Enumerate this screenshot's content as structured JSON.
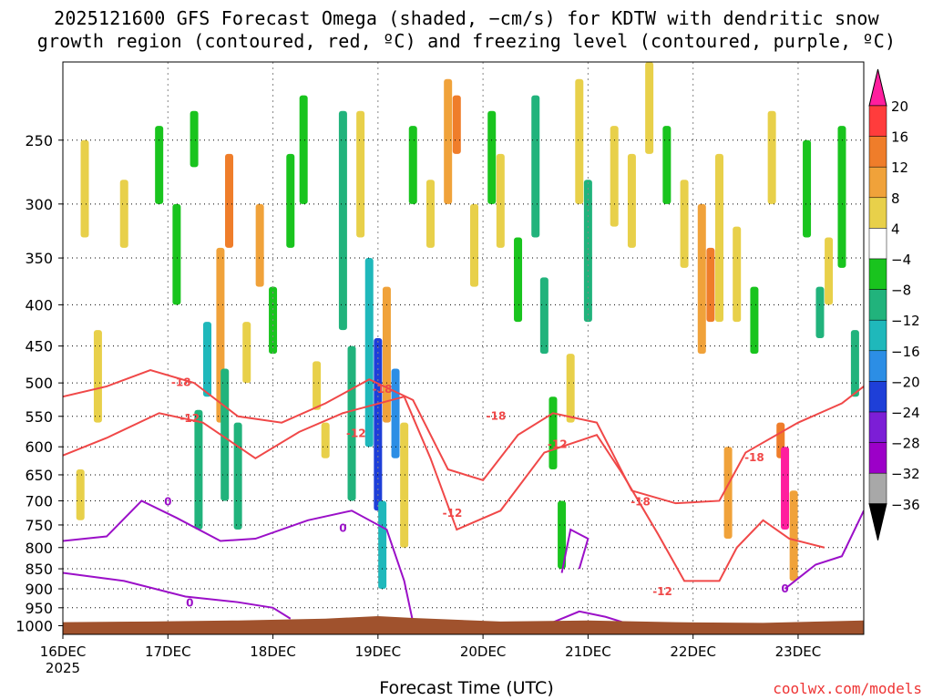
{
  "title_line1": "2025121600 GFS Forecast Omega (shaded, −cm/s) for KDTW with dendritic snow",
  "title_line2": "growth region (contoured, red, ºC) and freezing level (contoured, purple, ºC)",
  "xlabel": "Forecast Time (UTC)",
  "credit": "coolwx.com/models",
  "chart_data": {
    "type": "heatmap",
    "title": "2025121600 GFS Forecast Omega (shaded, −cm/s) for KDTW with dendritic snow growth region (contoured, red, ºC) and freezing level (contoured, purple, ºC)",
    "xlabel": "Forecast Time (UTC)",
    "ylabel": "",
    "y_scale": "log",
    "y_inverted": true,
    "y_ticks": [
      "250",
      "300",
      "350",
      "400",
      "450",
      "500",
      "550",
      "600",
      "650",
      "700",
      "750",
      "800",
      "850",
      "900",
      "950",
      "1000"
    ],
    "y_tick_values": [
      250,
      300,
      350,
      400,
      450,
      500,
      550,
      600,
      650,
      700,
      750,
      800,
      850,
      900,
      950,
      1000
    ],
    "ylim": [
      1025,
      200
    ],
    "x_ticks": [
      "16DEC",
      "17DEC",
      "18DEC",
      "19DEC",
      "20DEC",
      "21DEC",
      "22DEC",
      "23DEC"
    ],
    "x_tick_values": [
      0,
      24,
      48,
      72,
      96,
      120,
      144,
      168
    ],
    "x_year_label": "2025",
    "xlim": [
      0,
      183
    ],
    "grid": true,
    "colorbar": {
      "labels": [
        "20",
        "16",
        "12",
        "8",
        "4",
        "−4",
        "−8",
        "−12",
        "−16",
        "−20",
        "−24",
        "−28",
        "−32",
        "−36"
      ],
      "colors": [
        "#ff1e9e",
        "#ff3c3c",
        "#ef7d2a",
        "#f0a23a",
        "#e8d04a",
        "#ffffff",
        "#19c41e",
        "#21b37c",
        "#1fb8bb",
        "#2c8ee5",
        "#1e3fd8",
        "#7c1ed6",
        "#9c00c8",
        "#a8a8a8",
        "#000000"
      ]
    },
    "contour_labels": {
      "dendritic": [
        "-18",
        "-12",
        "-18",
        "-12",
        "-18",
        "-12",
        "-18",
        "-12",
        "-12",
        "-18",
        "-18",
        "-12"
      ],
      "freezing": [
        "0",
        "0",
        "0",
        "0",
        "0",
        "0",
        "0"
      ]
    },
    "omega_cells": [
      {
        "t": 5,
        "p1": 250,
        "p2": 330,
        "v": 6
      },
      {
        "t": 8,
        "p1": 430,
        "p2": 560,
        "v": 6
      },
      {
        "t": 4,
        "p1": 640,
        "p2": 740,
        "v": 5
      },
      {
        "t": 14,
        "p1": 280,
        "p2": 340,
        "v": 5
      },
      {
        "t": 22,
        "p1": 240,
        "p2": 300,
        "v": -6
      },
      {
        "t": 26,
        "p1": 300,
        "p2": 400,
        "v": -7
      },
      {
        "t": 30,
        "p1": 230,
        "p2": 270,
        "v": -6
      },
      {
        "t": 31,
        "p1": 540,
        "p2": 760,
        "v": -8
      },
      {
        "t": 33,
        "p1": 420,
        "p2": 520,
        "v": -12
      },
      {
        "t": 36,
        "p1": 340,
        "p2": 560,
        "v": 8
      },
      {
        "t": 37,
        "p1": 480,
        "p2": 700,
        "v": -8
      },
      {
        "t": 38,
        "p1": 260,
        "p2": 340,
        "v": 12
      },
      {
        "t": 40,
        "p1": 560,
        "p2": 760,
        "v": -9
      },
      {
        "t": 42,
        "p1": 420,
        "p2": 500,
        "v": 7
      },
      {
        "t": 45,
        "p1": 300,
        "p2": 380,
        "v": 8
      },
      {
        "t": 48,
        "p1": 380,
        "p2": 460,
        "v": -6
      },
      {
        "t": 52,
        "p1": 260,
        "p2": 340,
        "v": -7
      },
      {
        "t": 55,
        "p1": 220,
        "p2": 300,
        "v": -6
      },
      {
        "t": 58,
        "p1": 470,
        "p2": 540,
        "v": 5
      },
      {
        "t": 60,
        "p1": 560,
        "p2": 620,
        "v": 6
      },
      {
        "t": 64,
        "p1": 230,
        "p2": 430,
        "v": -8
      },
      {
        "t": 66,
        "p1": 450,
        "p2": 700,
        "v": -10
      },
      {
        "t": 68,
        "p1": 230,
        "p2": 330,
        "v": 6
      },
      {
        "t": 70,
        "p1": 350,
        "p2": 600,
        "v": -12
      },
      {
        "t": 72,
        "p1": 440,
        "p2": 720,
        "v": -20
      },
      {
        "t": 73,
        "p1": 700,
        "p2": 900,
        "v": -14
      },
      {
        "t": 74,
        "p1": 380,
        "p2": 560,
        "v": 8
      },
      {
        "t": 76,
        "p1": 480,
        "p2": 620,
        "v": -16
      },
      {
        "t": 78,
        "p1": 560,
        "p2": 800,
        "v": 6
      },
      {
        "t": 80,
        "p1": 240,
        "p2": 300,
        "v": -6
      },
      {
        "t": 84,
        "p1": 280,
        "p2": 340,
        "v": 7
      },
      {
        "t": 88,
        "p1": 210,
        "p2": 300,
        "v": 8
      },
      {
        "t": 90,
        "p1": 220,
        "p2": 260,
        "v": 12
      },
      {
        "t": 94,
        "p1": 300,
        "p2": 380,
        "v": 6
      },
      {
        "t": 98,
        "p1": 230,
        "p2": 300,
        "v": -7
      },
      {
        "t": 100,
        "p1": 260,
        "p2": 340,
        "v": 5
      },
      {
        "t": 104,
        "p1": 330,
        "p2": 420,
        "v": -6
      },
      {
        "t": 108,
        "p1": 220,
        "p2": 330,
        "v": -8
      },
      {
        "t": 110,
        "p1": 370,
        "p2": 460,
        "v": -9
      },
      {
        "t": 112,
        "p1": 520,
        "p2": 640,
        "v": -7
      },
      {
        "t": 114,
        "p1": 700,
        "p2": 850,
        "v": -6
      },
      {
        "t": 116,
        "p1": 460,
        "p2": 560,
        "v": 7
      },
      {
        "t": 118,
        "p1": 210,
        "p2": 300,
        "v": 6
      },
      {
        "t": 120,
        "p1": 280,
        "p2": 420,
        "v": -8
      },
      {
        "t": 126,
        "p1": 240,
        "p2": 320,
        "v": 6
      },
      {
        "t": 130,
        "p1": 260,
        "p2": 340,
        "v": 5
      },
      {
        "t": 134,
        "p1": 200,
        "p2": 260,
        "v": 5
      },
      {
        "t": 138,
        "p1": 240,
        "p2": 300,
        "v": -6
      },
      {
        "t": 142,
        "p1": 280,
        "p2": 360,
        "v": 6
      },
      {
        "t": 146,
        "p1": 300,
        "p2": 460,
        "v": 9
      },
      {
        "t": 148,
        "p1": 340,
        "p2": 420,
        "v": 13
      },
      {
        "t": 150,
        "p1": 260,
        "p2": 420,
        "v": 6
      },
      {
        "t": 152,
        "p1": 600,
        "p2": 780,
        "v": 9
      },
      {
        "t": 154,
        "p1": 320,
        "p2": 420,
        "v": 5
      },
      {
        "t": 158,
        "p1": 380,
        "p2": 460,
        "v": -7
      },
      {
        "t": 162,
        "p1": 230,
        "p2": 300,
        "v": 5
      },
      {
        "t": 164,
        "p1": 560,
        "p2": 620,
        "v": 12
      },
      {
        "t": 165,
        "p1": 600,
        "p2": 760,
        "v": 22
      },
      {
        "t": 167,
        "p1": 680,
        "p2": 880,
        "v": 10
      },
      {
        "t": 170,
        "p1": 250,
        "p2": 330,
        "v": -6
      },
      {
        "t": 173,
        "p1": 380,
        "p2": 440,
        "v": -9
      },
      {
        "t": 175,
        "p1": 330,
        "p2": 400,
        "v": 6
      },
      {
        "t": 178,
        "p1": 240,
        "p2": 360,
        "v": -7
      },
      {
        "t": 181,
        "p1": 430,
        "p2": 520,
        "v": -8
      }
    ]
  }
}
